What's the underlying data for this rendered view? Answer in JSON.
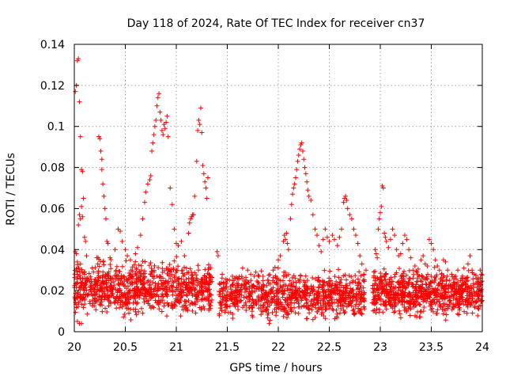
{
  "chart_data": {
    "type": "scatter",
    "title": "Day 118 of 2024, Rate Of TEC Index for receiver cn37",
    "xlabel": "GPS time / hours",
    "ylabel": "ROTI / TECUs",
    "xlim": [
      20,
      24
    ],
    "ylim": [
      0,
      0.14
    ],
    "xticks": [
      20,
      20.5,
      21,
      21.5,
      22,
      22.5,
      23,
      23.5,
      24
    ],
    "xtick_labels": [
      "20",
      "20.5",
      "21",
      "21.5",
      "22",
      "22.5",
      "23",
      "23.5",
      "24"
    ],
    "yticks": [
      0,
      0.02,
      0.04,
      0.06,
      0.08,
      0.1,
      0.12,
      0.14
    ],
    "ytick_labels": [
      "0",
      "0.02",
      "0.04",
      "0.06",
      "0.08",
      "0.1",
      "0.12",
      "0.14"
    ],
    "grid": true,
    "marker": "+",
    "color": "#ff0000",
    "series": [
      {
        "name": "ROTI",
        "points": [
          [
            20.01,
            0.117
          ],
          [
            20.02,
            0.12
          ],
          [
            20.03,
            0.132
          ],
          [
            20.04,
            0.133
          ],
          [
            20.05,
            0.112
          ],
          [
            20.06,
            0.095
          ],
          [
            20.07,
            0.079
          ],
          [
            20.08,
            0.078
          ],
          [
            20.05,
            0.057
          ],
          [
            20.06,
            0.055
          ],
          [
            20.07,
            0.061
          ],
          [
            20.08,
            0.056
          ],
          [
            20.09,
            0.065
          ],
          [
            20.1,
            0.046
          ],
          [
            20.11,
            0.044
          ],
          [
            20.04,
            0.052
          ],
          [
            20.01,
            0.039
          ],
          [
            20.02,
            0.038
          ],
          [
            20.03,
            0.034
          ],
          [
            20.06,
            0.033
          ],
          [
            20.12,
            0.037
          ],
          [
            20.03,
            0.005
          ],
          [
            20.05,
            0.004
          ],
          [
            20.07,
            0.004
          ],
          [
            20.24,
            0.095
          ],
          [
            20.25,
            0.094
          ],
          [
            20.26,
            0.088
          ],
          [
            20.27,
            0.084
          ],
          [
            20.27,
            0.079
          ],
          [
            20.28,
            0.072
          ],
          [
            20.29,
            0.066
          ],
          [
            20.3,
            0.06
          ],
          [
            20.31,
            0.055
          ],
          [
            20.32,
            0.044
          ],
          [
            20.33,
            0.043
          ],
          [
            20.22,
            0.036
          ],
          [
            20.23,
            0.033
          ],
          [
            20.35,
            0.036
          ],
          [
            20.4,
            0.04
          ],
          [
            20.43,
            0.05
          ],
          [
            20.45,
            0.049
          ],
          [
            20.47,
            0.044
          ],
          [
            20.5,
            0.04
          ],
          [
            20.52,
            0.037
          ],
          [
            20.55,
            0.035
          ],
          [
            20.6,
            0.038
          ],
          [
            20.62,
            0.041
          ],
          [
            20.65,
            0.047
          ],
          [
            20.67,
            0.055
          ],
          [
            20.69,
            0.063
          ],
          [
            20.7,
            0.068
          ],
          [
            20.72,
            0.072
          ],
          [
            20.74,
            0.074
          ],
          [
            20.75,
            0.076
          ],
          [
            20.76,
            0.088
          ],
          [
            20.77,
            0.092
          ],
          [
            20.78,
            0.096
          ],
          [
            20.79,
            0.1
          ],
          [
            20.8,
            0.103
          ],
          [
            20.81,
            0.11
          ],
          [
            20.82,
            0.114
          ],
          [
            20.83,
            0.116
          ],
          [
            20.84,
            0.107
          ],
          [
            20.85,
            0.103
          ],
          [
            20.86,
            0.098
          ],
          [
            20.87,
            0.096
          ],
          [
            20.88,
            0.101
          ],
          [
            20.89,
            0.099
          ],
          [
            20.9,
            0.102
          ],
          [
            20.91,
            0.105
          ],
          [
            20.92,
            0.095
          ],
          [
            20.94,
            0.07
          ],
          [
            20.96,
            0.062
          ],
          [
            20.98,
            0.05
          ],
          [
            21.0,
            0.043
          ],
          [
            21.02,
            0.042
          ],
          [
            21.05,
            0.044
          ],
          [
            21.08,
            0.037
          ],
          [
            21.1,
            0.031
          ],
          [
            21.12,
            0.048
          ],
          [
            21.13,
            0.053
          ],
          [
            21.14,
            0.055
          ],
          [
            21.15,
            0.056
          ],
          [
            21.16,
            0.057
          ],
          [
            21.17,
            0.057
          ],
          [
            21.18,
            0.066
          ],
          [
            21.2,
            0.083
          ],
          [
            21.21,
            0.098
          ],
          [
            21.22,
            0.103
          ],
          [
            21.23,
            0.101
          ],
          [
            21.24,
            0.109
          ],
          [
            21.25,
            0.097
          ],
          [
            21.26,
            0.081
          ],
          [
            21.27,
            0.077
          ],
          [
            21.28,
            0.073
          ],
          [
            21.29,
            0.07
          ],
          [
            21.3,
            0.065
          ],
          [
            21.31,
            0.075
          ],
          [
            21.4,
            0.039
          ],
          [
            21.41,
            0.037
          ],
          [
            21.45,
            0.028
          ],
          [
            21.5,
            0.025
          ],
          [
            21.55,
            0.027
          ],
          [
            21.6,
            0.026
          ],
          [
            21.65,
            0.031
          ],
          [
            21.7,
            0.03
          ],
          [
            21.73,
            0.028
          ],
          [
            21.78,
            0.029
          ],
          [
            21.8,
            0.024
          ],
          [
            21.85,
            0.027
          ],
          [
            21.9,
            0.025
          ],
          [
            21.95,
            0.03
          ],
          [
            22.0,
            0.035
          ],
          [
            22.02,
            0.037
          ],
          [
            22.05,
            0.044
          ],
          [
            22.06,
            0.047
          ],
          [
            22.07,
            0.045
          ],
          [
            22.08,
            0.048
          ],
          [
            22.09,
            0.043
          ],
          [
            22.1,
            0.04
          ],
          [
            22.12,
            0.055
          ],
          [
            22.13,
            0.062
          ],
          [
            22.14,
            0.067
          ],
          [
            22.15,
            0.07
          ],
          [
            22.16,
            0.072
          ],
          [
            22.17,
            0.075
          ],
          [
            22.18,
            0.079
          ],
          [
            22.19,
            0.083
          ],
          [
            22.2,
            0.086
          ],
          [
            22.21,
            0.089
          ],
          [
            22.22,
            0.091
          ],
          [
            22.23,
            0.092
          ],
          [
            22.24,
            0.088
          ],
          [
            22.25,
            0.084
          ],
          [
            22.26,
            0.08
          ],
          [
            22.27,
            0.077
          ],
          [
            22.28,
            0.073
          ],
          [
            22.29,
            0.069
          ],
          [
            22.3,
            0.066
          ],
          [
            22.32,
            0.064
          ],
          [
            22.34,
            0.057
          ],
          [
            22.36,
            0.05
          ],
          [
            22.38,
            0.047
          ],
          [
            22.4,
            0.042
          ],
          [
            22.42,
            0.039
          ],
          [
            22.44,
            0.045
          ],
          [
            22.46,
            0.05
          ],
          [
            22.48,
            0.046
          ],
          [
            22.5,
            0.044
          ],
          [
            22.53,
            0.047
          ],
          [
            22.55,
            0.045
          ],
          [
            22.58,
            0.042
          ],
          [
            22.6,
            0.046
          ],
          [
            22.62,
            0.05
          ],
          [
            22.64,
            0.063
          ],
          [
            22.65,
            0.065
          ],
          [
            22.66,
            0.066
          ],
          [
            22.67,
            0.064
          ],
          [
            22.68,
            0.06
          ],
          [
            22.7,
            0.057
          ],
          [
            22.72,
            0.055
          ],
          [
            22.74,
            0.05
          ],
          [
            22.76,
            0.047
          ],
          [
            22.78,
            0.043
          ],
          [
            22.8,
            0.037
          ],
          [
            22.82,
            0.033
          ],
          [
            22.84,
            0.028
          ],
          [
            22.86,
            0.03
          ],
          [
            22.95,
            0.04
          ],
          [
            22.96,
            0.038
          ],
          [
            22.97,
            0.036
          ],
          [
            22.98,
            0.05
          ],
          [
            22.99,
            0.055
          ],
          [
            23.0,
            0.058
          ],
          [
            23.01,
            0.061
          ],
          [
            23.02,
            0.071
          ],
          [
            23.03,
            0.07
          ],
          [
            23.04,
            0.048
          ],
          [
            23.05,
            0.046
          ],
          [
            23.06,
            0.044
          ],
          [
            23.08,
            0.041
          ],
          [
            23.1,
            0.045
          ],
          [
            23.12,
            0.05
          ],
          [
            23.14,
            0.047
          ],
          [
            23.16,
            0.04
          ],
          [
            23.18,
            0.037
          ],
          [
            23.2,
            0.038
          ],
          [
            23.22,
            0.043
          ],
          [
            23.24,
            0.047
          ],
          [
            23.26,
            0.045
          ],
          [
            23.28,
            0.04
          ],
          [
            23.3,
            0.036
          ],
          [
            23.32,
            0.03
          ],
          [
            23.34,
            0.032
          ],
          [
            23.36,
            0.029
          ],
          [
            23.38,
            0.027
          ],
          [
            23.4,
            0.035
          ],
          [
            23.42,
            0.037
          ],
          [
            23.44,
            0.033
          ],
          [
            23.46,
            0.032
          ],
          [
            23.48,
            0.045
          ],
          [
            23.5,
            0.043
          ],
          [
            23.52,
            0.04
          ],
          [
            23.54,
            0.035
          ],
          [
            23.56,
            0.032
          ],
          [
            23.58,
            0.03
          ],
          [
            23.6,
            0.028
          ],
          [
            23.62,
            0.035
          ],
          [
            23.64,
            0.034
          ],
          [
            23.66,
            0.03
          ],
          [
            23.68,
            0.025
          ],
          [
            23.7,
            0.028
          ],
          [
            23.72,
            0.024
          ],
          [
            23.74,
            0.027
          ],
          [
            23.76,
            0.03
          ],
          [
            23.78,
            0.022
          ],
          [
            23.8,
            0.026
          ],
          [
            23.82,
            0.031
          ],
          [
            23.84,
            0.026
          ],
          [
            23.86,
            0.033
          ],
          [
            23.88,
            0.037
          ],
          [
            23.9,
            0.03
          ],
          [
            23.92,
            0.028
          ],
          [
            23.94,
            0.026
          ],
          [
            23.96,
            0.024
          ],
          [
            23.98,
            0.03
          ],
          [
            23.99,
            0.028
          ]
        ]
      }
    ],
    "background_band": {
      "description": "dense cluster of ROTI values along the whole time range",
      "segments": [
        {
          "x_from": 20.0,
          "x_to": 21.35,
          "y_from": 0.004,
          "y_to": 0.034,
          "count": 900
        },
        {
          "x_from": 21.42,
          "x_to": 22.85,
          "y_from": 0.003,
          "y_to": 0.029,
          "count": 850
        },
        {
          "x_from": 22.92,
          "x_to": 24.0,
          "y_from": 0.004,
          "y_to": 0.03,
          "count": 750
        }
      ]
    }
  }
}
